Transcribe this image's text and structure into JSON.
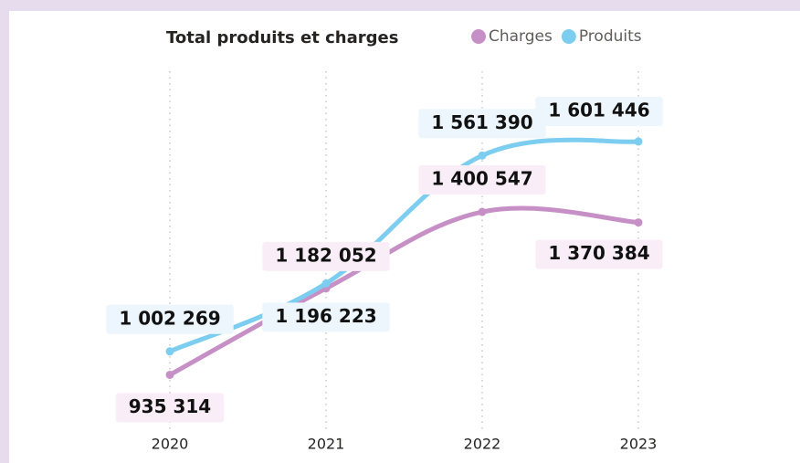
{
  "chart_data": {
    "type": "line",
    "title": "Total produits et charges",
    "categories": [
      "2020",
      "2021",
      "2022",
      "2023"
    ],
    "series": [
      {
        "name": "Charges",
        "color": "#c690c6",
        "values": [
          935314,
          1182052,
          1400547,
          1370384
        ],
        "value_labels": [
          "935 314",
          "1 182 052",
          "1 400 547",
          "1 370 384"
        ]
      },
      {
        "name": "Produits",
        "color": "#7ccdf0",
        "values": [
          1002269,
          1196223,
          1561390,
          1601446
        ],
        "value_labels": [
          "1 002 269",
          "1 196 223",
          "1 561 390",
          "1 601 446"
        ]
      }
    ],
    "ylim": [
      780000,
      1810000
    ],
    "legend": "top-right"
  }
}
